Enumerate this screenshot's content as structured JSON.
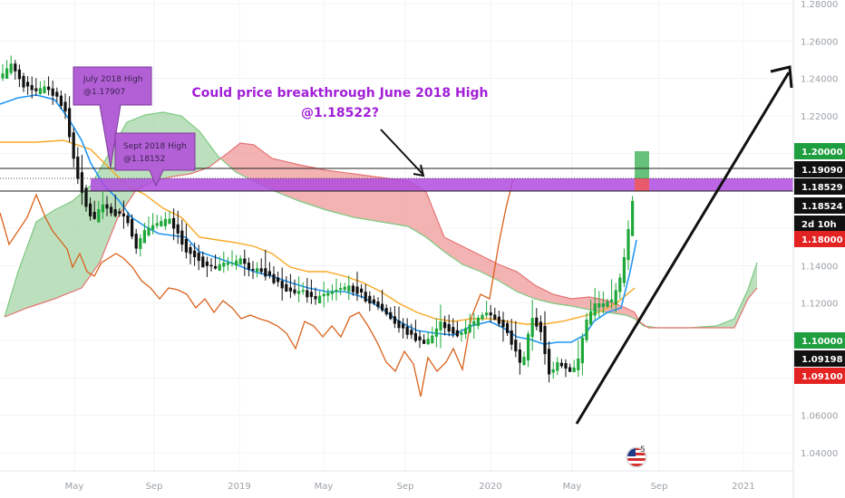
{
  "chart_data": {
    "type": "candlestick",
    "x_ticks": [
      "May",
      "Sep",
      "2019",
      "May",
      "Sep",
      "2020",
      "May",
      "Sep",
      "2021"
    ],
    "y_ticks": [
      "1.28000",
      "1.26000",
      "1.24000",
      "1.22000",
      "1.20000",
      "1.18000",
      "1.16000",
      "1.14000",
      "1.12000",
      "1.10000",
      "1.08000",
      "1.06000",
      "1.04000"
    ],
    "ylim": [
      1.03,
      1.285
    ],
    "price_tags": [
      {
        "label": "1.20000",
        "value": 1.2,
        "bg": "#1e9e3e",
        "fg": "#ffffff"
      },
      {
        "label": "1.19090",
        "value": 1.1909,
        "bg": "#111111",
        "fg": "#ffffff"
      },
      {
        "label": "1.18529",
        "value": 1.18529,
        "bg": "#111111",
        "fg": "#ffffff"
      },
      {
        "label": "1.18524",
        "value": 1.18524,
        "bg": "#111111",
        "fg": "#ffffff"
      },
      {
        "label": "2d 10h",
        "value": 1.1755,
        "bg": "#111111",
        "fg": "#ffffff"
      },
      {
        "label": "1.18000",
        "value": 1.1667,
        "bg": "#e32222",
        "fg": "#ffffff"
      },
      {
        "label": "1.10000",
        "value": 1.1,
        "bg": "#1e9e3e",
        "fg": "#ffffff"
      },
      {
        "label": "1.09198",
        "value": 1.09198,
        "bg": "#111111",
        "fg": "#ffffff"
      },
      {
        "label": "1.09100",
        "value": 1.091,
        "bg": "#e32222",
        "fg": "#ffffff"
      }
    ],
    "colors": {
      "up": "#26a69a",
      "down": "#ef5350",
      "candle_up": "#1ea83a",
      "candle_down": "#111111",
      "kumo_bull": "#a5d6a7",
      "kumo_bear": "#ef9a9a",
      "tenkan": "#2196f3",
      "kijun": "#f9a825",
      "chikou": "#d9611a",
      "zone": "#b04be0",
      "callout": "#b360d6",
      "headline": "#a21fd8"
    }
  },
  "annotations": {
    "headline_line1": "Could price breakthrough June 2018 High",
    "headline_line2": "@1.18522?",
    "callout1_line1": "July 2018 High",
    "callout1_line2": "@1.17907",
    "callout2_line1": "Sept 2018 High",
    "callout2_line2": "@1.18152",
    "logo_badge": "5"
  }
}
